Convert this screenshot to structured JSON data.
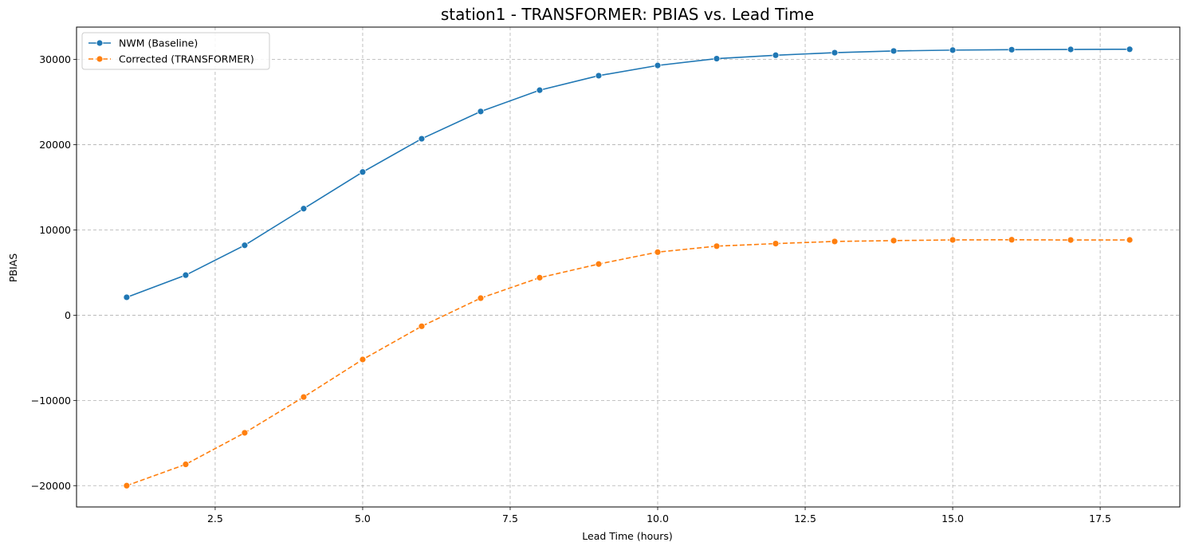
{
  "chart_data": {
    "type": "line",
    "title": "station1 - TRANSFORMER: PBIAS vs. Lead Time",
    "xlabel": "Lead Time (hours)",
    "ylabel": "PBIAS",
    "xlim": [
      0.15,
      18.85
    ],
    "ylim": [
      -22500,
      33800
    ],
    "xticks": [
      2.5,
      5.0,
      7.5,
      10.0,
      12.5,
      15.0,
      17.5
    ],
    "xtick_labels": [
      "2.5",
      "5.0",
      "7.5",
      "10.0",
      "12.5",
      "15.0",
      "17.5"
    ],
    "yticks": [
      -20000,
      -10000,
      0,
      10000,
      20000,
      30000
    ],
    "ytick_labels": [
      "−20000",
      "−10000",
      "0",
      "10000",
      "20000",
      "30000"
    ],
    "grid": true,
    "legend_position": "upper-left",
    "x": [
      1,
      2,
      3,
      4,
      5,
      6,
      7,
      8,
      9,
      10,
      11,
      12,
      13,
      14,
      15,
      16,
      17,
      18
    ],
    "series": [
      {
        "name": "NWM (Baseline)",
        "color": "#1f77b4",
        "linestyle": "solid",
        "marker": "circle",
        "values": [
          2100,
          4700,
          8200,
          12500,
          16800,
          20700,
          23900,
          26400,
          28100,
          29300,
          30100,
          30500,
          30800,
          31000,
          31100,
          31150,
          31180,
          31200
        ]
      },
      {
        "name": "Corrected (TRANSFORMER)",
        "color": "#ff7f0e",
        "linestyle": "dashed",
        "marker": "circle",
        "values": [
          -20000,
          -17500,
          -13800,
          -9600,
          -5200,
          -1300,
          2000,
          4400,
          6000,
          7400,
          8100,
          8400,
          8650,
          8750,
          8830,
          8850,
          8820,
          8830
        ]
      }
    ]
  }
}
